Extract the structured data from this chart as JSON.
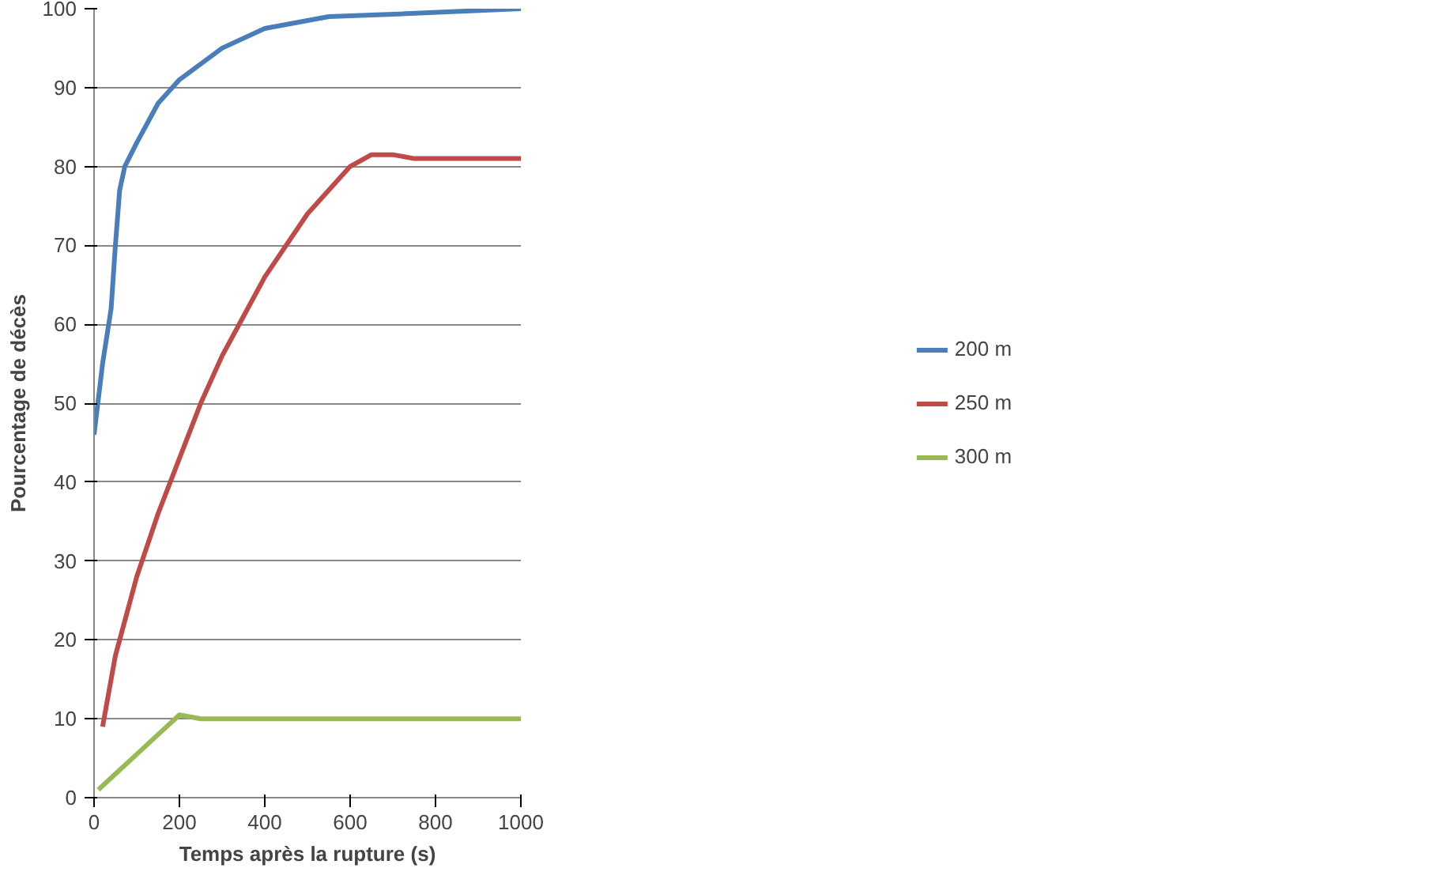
{
  "chart_data": {
    "type": "line",
    "xlabel": "Temps après la rupture (s)",
    "ylabel": "Pourcentage de décès",
    "xlim": [
      0,
      1000
    ],
    "ylim": [
      0,
      100
    ],
    "xticks": [
      0,
      200,
      400,
      600,
      800,
      1000
    ],
    "yticks": [
      0,
      10,
      20,
      30,
      40,
      50,
      60,
      70,
      80,
      90,
      100
    ],
    "grid": "y",
    "legend": "right",
    "marker": "none",
    "line_style": "solid",
    "series": [
      {
        "name": "200 m",
        "color": "#4a7ebb",
        "x": [
          0,
          20,
          40,
          50,
          60,
          72,
          100,
          150,
          200,
          250,
          300,
          400,
          500,
          550,
          700,
          1000
        ],
        "values": [
          46,
          55,
          62,
          70,
          77,
          80,
          83,
          88,
          91,
          93,
          95,
          97.5,
          98.5,
          99,
          99.3,
          100
        ]
      },
      {
        "name": "250 m",
        "color": "#be4b48",
        "x": [
          20,
          50,
          100,
          150,
          200,
          250,
          300,
          350,
          400,
          450,
          500,
          550,
          600,
          650,
          700,
          750,
          1000
        ],
        "values": [
          9,
          18,
          28,
          36,
          43,
          50,
          56,
          61,
          66,
          70,
          74,
          77,
          80,
          81.5,
          81.5,
          81,
          81
        ]
      },
      {
        "name": "300 m",
        "color": "#98b954",
        "x": [
          10,
          50,
          100,
          150,
          180,
          200,
          250,
          300,
          500,
          1000
        ],
        "values": [
          1,
          3,
          5.5,
          8,
          9.5,
          10.5,
          10,
          10,
          10,
          10
        ]
      }
    ]
  }
}
